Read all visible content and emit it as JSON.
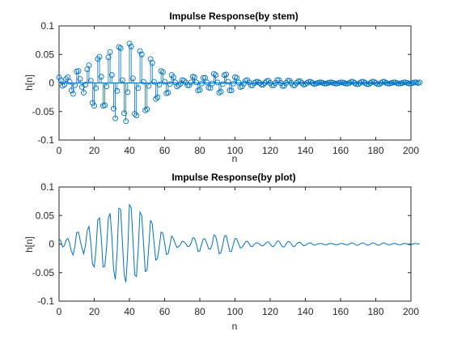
{
  "figure": {
    "background": "#ffffff",
    "series_color": "#0072BD",
    "axis_color": "#262626"
  },
  "chart_data": [
    {
      "type": "stem",
      "title": "Impulse Response(by stem)",
      "xlabel": "n",
      "ylabel": "h[n]",
      "xlim": [
        0,
        200
      ],
      "ylim": [
        -0.1,
        0.1
      ],
      "xticks": [
        "0",
        "20",
        "40",
        "60",
        "80",
        "100",
        "120",
        "140",
        "160",
        "180",
        "200"
      ],
      "yticks": [
        "-0.1",
        "-0.05",
        "0",
        "0.05",
        "0.1"
      ],
      "x_start": 0,
      "x_step": 1,
      "values": [
        0.01,
        0.005,
        -0.005,
        -0.003,
        0.007,
        0.01,
        0.002,
        -0.013,
        -0.019,
        -0.004,
        0.02,
        0.021,
        0.007,
        -0.007,
        -0.017,
        -0.003,
        0.024,
        0.031,
        0.004,
        -0.035,
        -0.04,
        -0.009,
        0.042,
        0.046,
        0.011,
        -0.04,
        -0.039,
        -0.006,
        0.045,
        0.054,
        0.014,
        -0.045,
        -0.062,
        -0.014,
        0.063,
        0.061,
        0.005,
        -0.053,
        -0.067,
        -0.016,
        0.069,
        0.064,
        0.008,
        -0.054,
        -0.057,
        -0.009,
        0.056,
        0.05,
        0.002,
        -0.048,
        -0.046,
        -0.005,
        0.042,
        0.035,
        0.002,
        -0.028,
        -0.025,
        -0.003,
        0.021,
        0.019,
        0.002,
        -0.018,
        -0.017,
        -0.002,
        0.014,
        0.01,
        0.001,
        -0.006,
        -0.004,
        -0.001,
        0.005,
        0.004,
        0.001,
        -0.004,
        -0.004,
        0.001,
        0.011,
        0.01,
        0.001,
        -0.013,
        -0.012,
        -0.001,
        0.009,
        0.009,
        0.001,
        -0.008,
        -0.009,
        -0.001,
        0.016,
        0.014,
        0.001,
        -0.017,
        -0.015,
        -0.002,
        0.014,
        0.015,
        0.002,
        -0.013,
        -0.013,
        -0.001,
        0.01,
        0.009,
        0.001,
        -0.007,
        -0.006,
        -0.001,
        0.004,
        0.005,
        0.001,
        -0.004,
        -0.004,
        0,
        0.002,
        0.002,
        0,
        -0.003,
        -0.003,
        0,
        0.003,
        0.004,
        0,
        -0.004,
        -0.004,
        0,
        0.005,
        0.005,
        0,
        -0.005,
        -0.005,
        0,
        0.004,
        0.004,
        0,
        -0.004,
        -0.004,
        0,
        0.003,
        0.003,
        0,
        -0.003,
        -0.002,
        0,
        0.002,
        0.002,
        0,
        -0.002,
        -0.001,
        0,
        0.001,
        0.001,
        0,
        -0.001,
        -0.001,
        0,
        0.001,
        0.001,
        0,
        -0.001,
        -0.001,
        0,
        0.001,
        0.001,
        0,
        -0.001,
        -0.001,
        0,
        0.002,
        0.002,
        0,
        -0.002,
        -0.002,
        0,
        0.002,
        0.002,
        0,
        -0.002,
        -0.002,
        0,
        0.002,
        0.002,
        0,
        -0.002,
        -0.002,
        0,
        0.002,
        0.002,
        0,
        -0.001,
        -0.001,
        0,
        0.001,
        0.001,
        0,
        -0.001,
        -0.001,
        0,
        0.001,
        0.001,
        0,
        -0.001,
        -0.001,
        0,
        0.001,
        0.001,
        0,
        0.001
      ]
    },
    {
      "type": "line",
      "title": "Impulse Response(by plot)",
      "xlabel": "n",
      "ylabel": "h[n]",
      "xlim": [
        0,
        200
      ],
      "ylim": [
        -0.1,
        0.1
      ],
      "xticks": [
        "0",
        "20",
        "40",
        "60",
        "80",
        "100",
        "120",
        "140",
        "160",
        "180",
        "200"
      ],
      "yticks": [
        "-0.1",
        "-0.05",
        "0",
        "0.05",
        "0.1"
      ],
      "x_start": 0,
      "x_step": 1,
      "values_from": "chart_data.0.values"
    }
  ]
}
